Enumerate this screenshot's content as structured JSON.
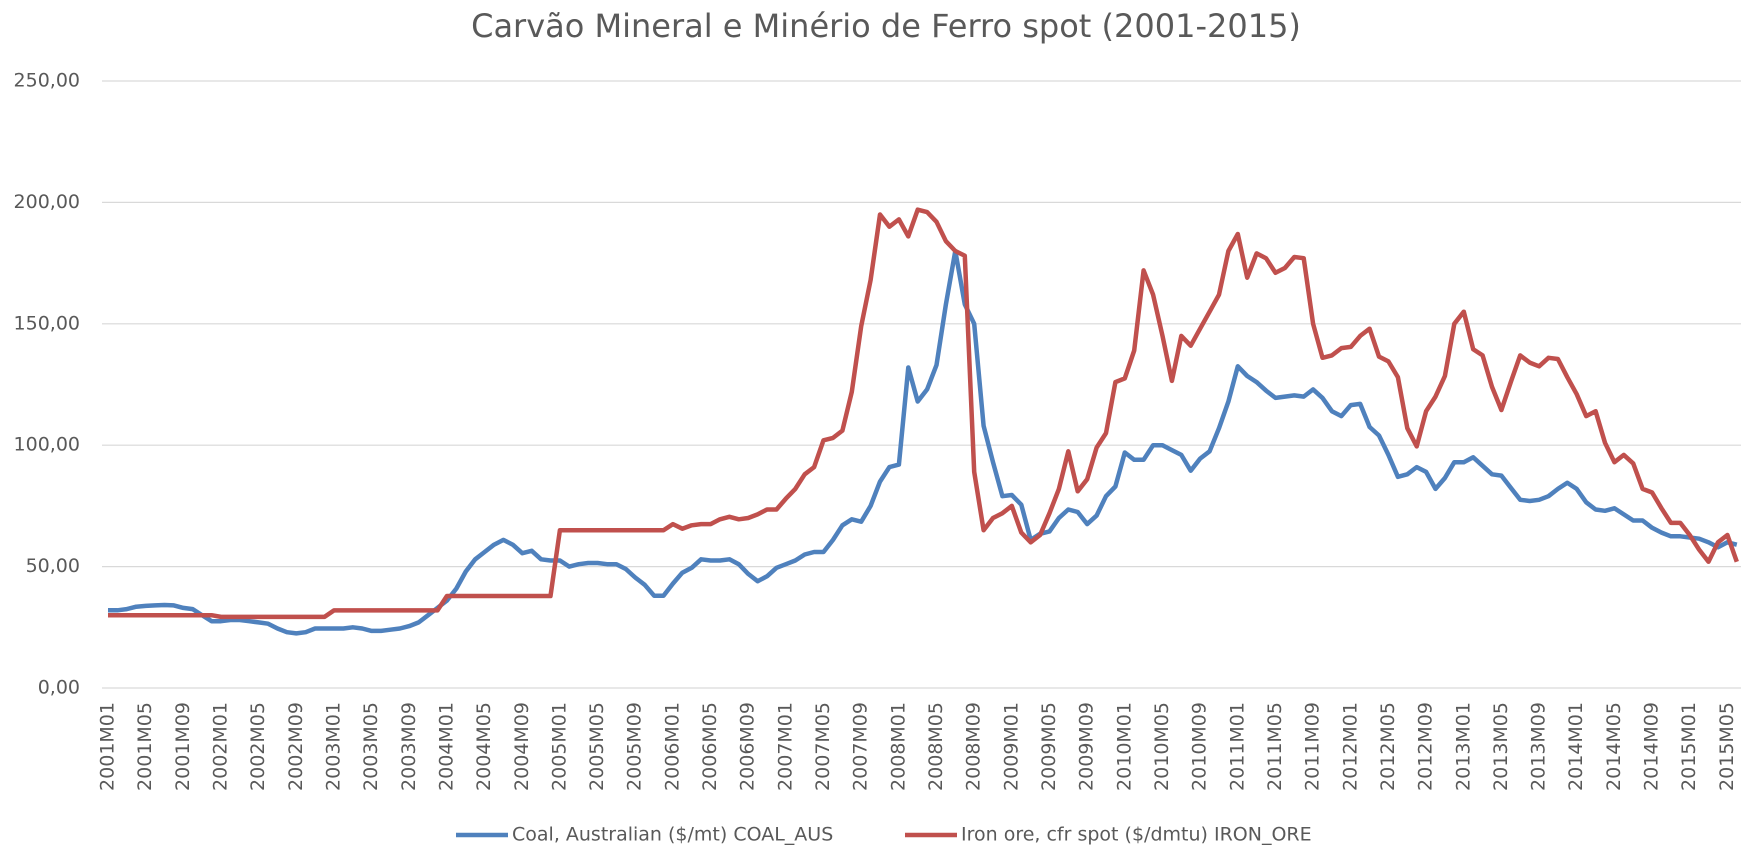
{
  "chart_data": {
    "type": "line",
    "title": "Carvão Mineral e Minério de Ferro spot (2001-2015)",
    "categories": [
      "2001M01",
      null,
      null,
      null,
      "2001M05",
      null,
      null,
      null,
      "2001M09",
      null,
      null,
      null,
      "2002M01",
      null,
      null,
      null,
      "2002M05",
      null,
      null,
      null,
      "2002M09",
      null,
      null,
      null,
      "2003M01",
      null,
      null,
      null,
      "2003M05",
      null,
      null,
      null,
      "2003M09",
      null,
      null,
      null,
      "2004M01",
      null,
      null,
      null,
      "2004M05",
      null,
      null,
      null,
      "2004M09",
      null,
      null,
      null,
      "2005M01",
      null,
      null,
      null,
      "2005M05",
      null,
      null,
      null,
      "2005M09",
      null,
      null,
      null,
      "2006M01",
      null,
      null,
      null,
      "2006M05",
      null,
      null,
      null,
      "2006M09",
      null,
      null,
      null,
      "2007M01",
      null,
      null,
      null,
      "2007M05",
      null,
      null,
      null,
      "2007M09",
      null,
      null,
      null,
      "2008M01",
      null,
      null,
      null,
      "2008M05",
      null,
      null,
      null,
      "2008M09",
      null,
      null,
      null,
      "2009M01",
      null,
      null,
      null,
      "2009M05",
      null,
      null,
      null,
      "2009M09",
      null,
      null,
      null,
      "2010M01",
      null,
      null,
      null,
      "2010M05",
      null,
      null,
      null,
      "2010M09",
      null,
      null,
      null,
      "2011M01",
      null,
      null,
      null,
      "2011M05",
      null,
      null,
      null,
      "2011M09",
      null,
      null,
      null,
      "2012M01",
      null,
      null,
      null,
      "2012M05",
      null,
      null,
      null,
      "2012M09",
      null,
      null,
      null,
      "2013M01",
      null,
      null,
      null,
      "2013M05",
      null,
      null,
      null,
      "2013M09",
      null,
      null,
      null,
      "2014M01",
      null,
      null,
      null,
      "2014M05",
      null,
      null,
      null,
      "2014M09",
      null,
      null,
      null,
      "2015M01",
      null,
      null,
      null,
      "2015M05",
      null
    ],
    "series": [
      {
        "name": "Coal, Australian ($/mt) COAL_AUS",
        "color": "#4f81bd",
        "values": [
          32,
          32,
          32.5,
          33.5,
          33.8,
          34,
          34.2,
          34,
          33,
          32.5,
          30,
          27.5,
          27.5,
          28,
          28,
          27.5,
          27,
          26.5,
          24.5,
          23,
          22.5,
          23,
          24.5,
          24.5,
          24.5,
          24.5,
          25,
          24.5,
          23.5,
          23.5,
          24,
          24.5,
          25.5,
          27,
          30,
          33,
          36,
          41,
          48,
          53,
          56,
          59,
          61,
          59,
          55.5,
          56.5,
          53,
          52.5,
          52.5,
          50,
          51,
          51.5,
          51.5,
          51,
          51,
          49,
          45.5,
          42.5,
          38,
          38,
          43,
          47.5,
          49.5,
          53,
          52.5,
          52.5,
          53,
          51,
          47,
          44,
          46,
          49.5,
          51,
          52.5,
          55,
          56,
          56,
          61,
          67,
          69.5,
          68.5,
          75,
          85,
          91,
          92,
          132,
          118,
          123,
          133,
          158,
          180,
          158,
          150,
          108,
          93,
          79,
          79.5,
          75.5,
          61,
          63.5,
          64.5,
          70,
          73.5,
          72.5,
          67.5,
          71,
          79,
          83,
          97,
          94,
          94,
          100,
          100,
          98,
          96,
          89.5,
          94.5,
          97.5,
          107,
          118,
          132.5,
          128.5,
          126,
          122.5,
          119.5,
          120,
          120.5,
          120,
          123,
          119.5,
          114,
          112,
          116.5,
          117,
          107.5,
          104,
          96,
          87,
          88,
          91,
          89,
          82,
          86.5,
          93,
          93,
          95,
          91.5,
          88,
          87.5,
          82.5,
          77.5,
          77,
          77.5,
          79,
          82,
          84.5,
          82,
          76.5,
          73.5,
          73,
          74,
          71.5,
          69,
          69,
          66,
          64,
          62.5,
          62.5,
          62,
          61.5,
          60,
          58,
          60,
          59
        ]
      },
      {
        "name": "Iron ore, cfr spot ($/dmtu) IRON_ORE",
        "color": "#c0504d",
        "values": [
          30,
          30,
          30,
          30,
          30,
          30,
          30,
          30,
          30,
          30,
          30,
          30,
          29.3,
          29.3,
          29.3,
          29.3,
          29.3,
          29.3,
          29.3,
          29.3,
          29.3,
          29.3,
          29.3,
          29.3,
          31.95,
          31.95,
          31.95,
          31.95,
          31.95,
          31.95,
          31.95,
          31.95,
          31.95,
          31.95,
          31.95,
          31.95,
          37.9,
          37.9,
          37.9,
          37.9,
          37.9,
          37.9,
          37.9,
          37.9,
          37.9,
          37.9,
          37.9,
          37.9,
          65,
          65,
          65,
          65,
          65,
          65,
          65,
          65,
          65,
          65,
          65,
          65,
          67.5,
          65.6,
          67,
          67.5,
          67.5,
          69.5,
          70.5,
          69.5,
          70,
          71.5,
          73.5,
          73.5,
          78,
          82,
          88,
          91,
          102,
          103,
          106,
          122,
          149,
          168,
          195,
          190,
          193,
          186,
          197,
          196,
          192,
          184,
          180,
          178,
          89,
          65,
          70,
          72,
          75,
          64,
          60,
          63,
          72,
          82,
          97.5,
          81,
          86,
          99,
          105,
          126,
          127.5,
          139,
          172,
          162,
          145,
          126.5,
          145,
          141,
          148,
          155,
          162,
          180,
          187,
          169,
          179,
          177,
          171,
          173,
          177.5,
          177,
          150,
          136,
          137,
          140,
          140.5,
          145,
          148,
          136.5,
          134.5,
          128,
          107,
          99.5,
          114,
          120,
          128.5,
          150,
          155,
          139.5,
          137,
          124,
          114.5,
          126,
          137,
          134,
          132.5,
          136,
          135.5,
          128,
          121,
          112,
          114,
          101,
          93,
          96,
          92.5,
          82,
          80.5,
          74,
          68,
          68,
          63,
          57,
          52,
          60,
          63,
          52
        ]
      }
    ],
    "ylim": [
      0,
      250
    ],
    "yticks": [
      {
        "value": 0,
        "label": "0,00"
      },
      {
        "value": 50,
        "label": "50,00"
      },
      {
        "value": 100,
        "label": "100,00"
      },
      {
        "value": 150,
        "label": "150,00"
      },
      {
        "value": 200,
        "label": "200,00"
      },
      {
        "value": 250,
        "label": "250,00"
      }
    ],
    "grid": true,
    "legend": "bottom"
  }
}
